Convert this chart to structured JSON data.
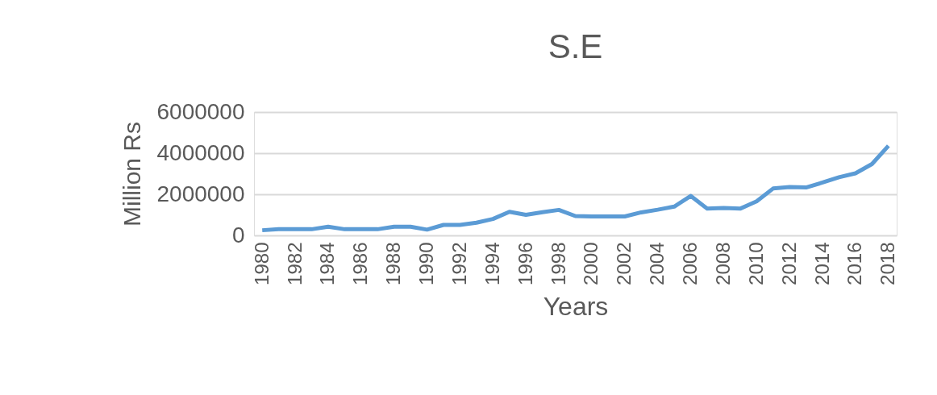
{
  "chart_data": {
    "type": "line",
    "title": "S.E",
    "xlabel": "Years",
    "ylabel": "Million Rs",
    "categories": [
      "1980",
      null,
      "1982",
      null,
      "1984",
      null,
      "1986",
      null,
      "1988",
      null,
      "1990",
      null,
      "1992",
      null,
      "1994",
      null,
      "1996",
      null,
      "1998",
      null,
      "2000",
      null,
      "2002",
      null,
      "2004",
      null,
      "2006",
      null,
      "2008",
      null,
      "2010",
      null,
      "2012",
      null,
      "2014",
      null,
      "2016",
      null,
      "2018"
    ],
    "series": [
      {
        "color": "#5b9bd5",
        "values": [
          250000,
          300000,
          300000,
          300000,
          420000,
          300000,
          300000,
          300000,
          420000,
          420000,
          280000,
          510000,
          510000,
          620000,
          800000,
          1150000,
          1000000,
          1130000,
          1240000,
          940000,
          920000,
          920000,
          920000,
          1120000,
          1250000,
          1400000,
          1920000,
          1300000,
          1330000,
          1300000,
          1660000,
          2280000,
          2350000,
          2330000,
          2570000,
          2830000,
          3020000,
          3470000,
          4360000
        ]
      }
    ],
    "ylim": [
      0,
      6000000
    ],
    "yticks": [
      0,
      2000000,
      4000000,
      6000000
    ],
    "grid": "y",
    "legend": false,
    "marker": "none",
    "line_style": "solid"
  }
}
